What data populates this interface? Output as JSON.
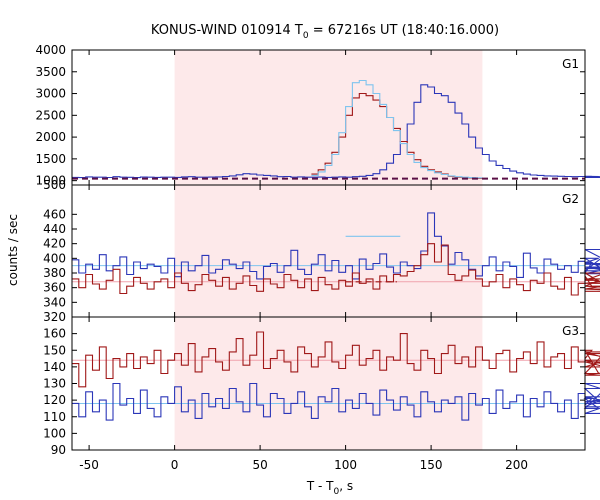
{
  "chart_data": {
    "type": "line",
    "title": {
      "prefix": "KONUS-WIND 010914 T",
      "sub": "0",
      "suffix": " = 67216s UT (18:40:16.000)"
    },
    "xlabel": {
      "prefix": "T - T",
      "sub": "0",
      "suffix": ", s"
    },
    "ylabel": "counts / sec",
    "xlim": [
      -60,
      240
    ],
    "x_ticks": [
      -50,
      0,
      50,
      100,
      150,
      200
    ],
    "shaded_interval": [
      0,
      180
    ],
    "colors": {
      "shade": "#fde9ea",
      "blue": "#2b36b8",
      "red": "#a01818",
      "light_blue": "#7fc4ee",
      "pink": "#f0a3ad",
      "background_dashed": "#5a0f46"
    },
    "panels": [
      {
        "label": "G1",
        "ylim": [
          900,
          4000
        ],
        "y_ticks": [
          1000,
          1500,
          2000,
          2500,
          3000,
          3500,
          4000
        ],
        "background_level": 1045,
        "background_interval": [
          100,
          180
        ],
        "series": [
          {
            "color": "blue",
            "x0": -60,
            "dx": 4,
            "values": [
              1075,
              1070,
              1085,
              1080,
              1078,
              1072,
              1090,
              1080,
              1076,
              1070,
              1082,
              1080,
              1074,
              1078,
              1080,
              1075,
              1085,
              1090,
              1080,
              1078,
              1082,
              1085,
              1095,
              1110,
              1135,
              1160,
              1150,
              1130,
              1120,
              1110,
              1090,
              1095,
              1080,
              1085,
              1078,
              1080,
              1082,
              1075,
              1080,
              1085,
              1078,
              1090,
              1100,
              1120,
              1160,
              1250,
              1400,
              1600,
              1900,
              2300,
              2800,
              3200,
              3150,
              3000,
              2950,
              2800,
              2550,
              2300,
              2000,
              1750,
              1600,
              1450,
              1350,
              1280,
              1220,
              1180,
              1150,
              1130,
              1120,
              1110,
              1105,
              1100,
              1095,
              1090,
              1095,
              1100,
              1100,
              1095,
              1090,
              1085,
              1080,
              1085,
              1082,
              1080,
              1075
            ]
          },
          {
            "color": "red",
            "x0": 80,
            "dx": 4,
            "values": [
              1150,
              1250,
              1400,
              1650,
              2000,
              2500,
              2900,
              3000,
              2950,
              2850,
              2700,
              2450,
              2200,
              1900,
              1650,
              1480,
              1330,
              1250,
              1200,
              1150,
              1100,
              1080,
              1070,
              1060,
              1055
            ]
          },
          {
            "color": "light_blue",
            "x0": 80,
            "dx": 4,
            "values": [
              1120,
              1200,
              1350,
              1600,
              2100,
              2700,
              3250,
              3300,
              3200,
              3000,
              2750,
              2450,
              2150,
              1850,
              1600,
              1420,
              1300,
              1230,
              1180,
              1140,
              1110,
              1090,
              1080,
              1070,
              1065
            ]
          }
        ]
      },
      {
        "label": "G2",
        "ylim": [
          320,
          500
        ],
        "y_ticks": [
          320,
          340,
          360,
          380,
          400,
          420,
          440,
          460,
          500
        ],
        "background_level": 368,
        "fit_blue": 390,
        "fit_red": 368,
        "background_interval": [
          100,
          130
        ],
        "series": [
          {
            "color": "blue",
            "x0": -60,
            "dx": 4,
            "values": [
              398,
              380,
              392,
              385,
              405,
              383,
              390,
              402,
              378,
              395,
              386,
              392,
              389,
              380,
              400,
              375,
              395,
              383,
              390,
              404,
              380,
              385,
              398,
              392,
              386,
              395,
              382,
              372,
              389,
              393,
              381,
              390,
              411,
              385,
              378,
              392,
              405,
              383,
              397,
              381,
              390,
              372,
              399,
              385,
              393,
              406,
              388,
              380,
              395,
              390,
              386,
              410,
              462,
              430,
              417,
              392,
              408,
              398,
              385,
              376,
              390,
              402,
              383,
              395,
              389,
              374,
              407,
              387,
              380,
              399,
              392,
              385,
              390,
              381,
              396,
              380,
              394,
              400,
              383,
              412,
              388,
              379,
              393,
              386,
              392
            ]
          },
          {
            "color": "red",
            "x0": -60,
            "dx": 4,
            "values": [
              372,
              360,
              378,
              365,
              358,
              370,
              385,
              352,
              362,
              374,
              366,
              358,
              368,
              372,
              360,
              380,
              366,
              356,
              364,
              378,
              370,
              362,
              374,
              358,
              366,
              376,
              363,
              355,
              372,
              365,
              360,
              378,
              370,
              360,
              372,
              356,
              374,
              364,
              358,
              370,
              362,
              380,
              366,
              372,
              358,
              376,
              368,
              378,
              376,
              382,
              390,
              405,
              420,
              395,
              418,
              378,
              370,
              376,
              384,
              372,
              362,
              368,
              378,
              360,
              372,
              364,
              356,
              370,
              366,
              380,
              362,
              358,
              374,
              350,
              366,
              376,
              362,
              370,
              380,
              358,
              366,
              372,
              362,
              358,
              355
            ]
          },
          {
            "color": "light_blue",
            "x0": 100,
            "dx": 4,
            "values": [
              430,
              430,
              430,
              430,
              430,
              430,
              430,
              430
            ]
          }
        ]
      },
      {
        "label": "G3",
        "ylim": [
          90,
          170
        ],
        "y_ticks": [
          90,
          100,
          110,
          120,
          130,
          140,
          150,
          160
        ],
        "fit_red": 144,
        "fit_blue": 118,
        "series": [
          {
            "color": "red",
            "x0": -60,
            "dx": 4,
            "values": [
              142,
              128,
              147,
              138,
              152,
              133,
              145,
              140,
              148,
              139,
              146,
              142,
              150,
              136,
              144,
              148,
              141,
              154,
              137,
              146,
              151,
              143,
              138,
              149,
              157,
              141,
              147,
              161,
              139,
              145,
              150,
              143,
              137,
              152,
              148,
              140,
              146,
              155,
              143,
              139,
              147,
              153,
              141,
              145,
              150,
              138,
              146,
              144,
              160,
              142,
              138,
              150,
              145,
              136,
              148,
              153,
              142,
              146,
              140,
              152,
              144,
              139,
              148,
              150,
              137,
              145,
              149,
              142,
              155,
              140,
              146,
              148,
              139,
              152,
              143,
              145,
              150,
              136,
              149,
              144,
              140,
              148,
              143,
              135,
              140
            ]
          },
          {
            "color": "blue",
            "x0": -60,
            "dx": 4,
            "values": [
              118,
              110,
              125,
              113,
              120,
              108,
              130,
              117,
              121,
              112,
              126,
              115,
              110,
              122,
              118,
              128,
              113,
              120,
              109,
              124,
              116,
              121,
              115,
              127,
              119,
              113,
              130,
              117,
              110,
              124,
              121,
              112,
              118,
              125,
              116,
              109,
              122,
              119,
              127,
              113,
              120,
              115,
              124,
              118,
              111,
              126,
              120,
              114,
              122,
              117,
              110,
              125,
              119,
              113,
              120,
              118,
              122,
              108,
              124,
              117,
              121,
              112,
              126,
              115,
              119,
              123,
              110,
              121,
              116,
              125,
              118,
              113,
              120,
              109,
              124,
              117,
              121,
              115,
              127,
              112,
              119,
              122,
              116,
              130,
              118
            ]
          }
        ]
      }
    ]
  }
}
